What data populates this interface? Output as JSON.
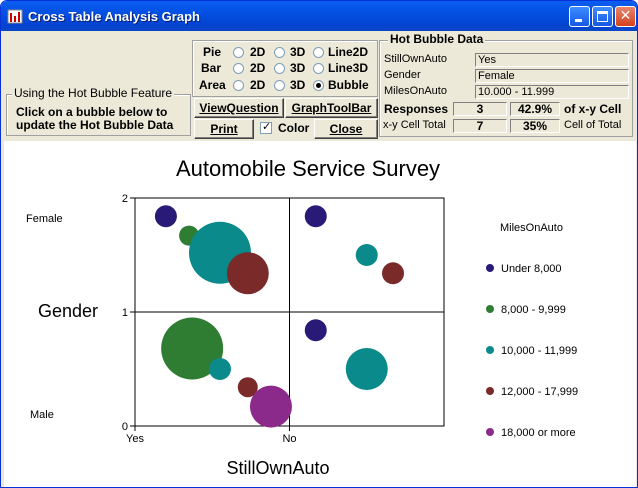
{
  "window": {
    "title": "Cross Table Analysis Graph"
  },
  "info": {
    "legend": "Using the Hot Bubble Feature",
    "text": "Click on a bubble below to update the Hot Bubble Data"
  },
  "options": {
    "rows": [
      {
        "label": "Pie",
        "choices": [
          "2D",
          "3D",
          "Line2D"
        ],
        "selected": null
      },
      {
        "label": "Bar",
        "choices": [
          "2D",
          "3D",
          "Line3D"
        ],
        "selected": null
      },
      {
        "label": "Area",
        "choices": [
          "2D",
          "3D",
          "Bubble"
        ],
        "selected": "Bubble"
      }
    ],
    "view_question": "ViewQuestion",
    "graph_toolbar": "GraphToolBar",
    "print": "Print",
    "color": "Color",
    "color_checked": true,
    "close": "Close"
  },
  "hot_bubble": {
    "legend": "Hot Bubble Data",
    "fields": [
      {
        "label": "StillOwnAuto",
        "value": "Yes"
      },
      {
        "label": "Gender",
        "value": "Female"
      },
      {
        "label": "MilesOnAuto",
        "value": "10.000 - 11.999"
      }
    ],
    "responses_label": "Responses",
    "responses": "3",
    "pct_xy": "42.9%",
    "pct_xy_label": "of x-y Cell",
    "xy_total_label": "x-y Cell Total",
    "xy_total": "7",
    "pct_cell": "35%",
    "pct_cell_label": "Cell of Total"
  },
  "chart_data": {
    "type": "bubble",
    "title": "Automobile Service Survey",
    "xlabel": "StillOwnAuto",
    "ylabel": "Gender",
    "x_ticks": [
      "Yes",
      "No"
    ],
    "y_ticks": [
      "0",
      "1",
      "2"
    ],
    "y_category_labels": {
      "top": "Female",
      "bottom": "Male"
    },
    "xlim": [
      0,
      2
    ],
    "ylim": [
      0,
      2
    ],
    "legend_title": "MilesOnAuto",
    "legend_position": "right",
    "series": [
      {
        "name": "Under 8,000",
        "color": "#2a1a78",
        "points": [
          {
            "x": 0.2,
            "y": 1.84,
            "r": 11
          },
          {
            "x": 1.17,
            "y": 1.84,
            "r": 11
          },
          {
            "x": 1.17,
            "y": 0.84,
            "r": 11
          }
        ]
      },
      {
        "name": "8,000 - 9,999",
        "color": "#2e7d32",
        "points": [
          {
            "x": 0.35,
            "y": 1.67,
            "r": 10
          },
          {
            "x": 0.37,
            "y": 0.68,
            "r": 31
          }
        ]
      },
      {
        "name": "10,000 - 11,999",
        "color": "#0a8a8a",
        "points": [
          {
            "x": 0.55,
            "y": 1.52,
            "r": 31
          },
          {
            "x": 0.55,
            "y": 0.5,
            "r": 11
          },
          {
            "x": 1.5,
            "y": 1.5,
            "r": 11
          },
          {
            "x": 1.5,
            "y": 0.5,
            "r": 21
          }
        ]
      },
      {
        "name": "12,000 - 17,999",
        "color": "#7b2a2a",
        "points": [
          {
            "x": 0.73,
            "y": 1.34,
            "r": 21
          },
          {
            "x": 1.67,
            "y": 1.34,
            "r": 11
          },
          {
            "x": 0.73,
            "y": 0.34,
            "r": 10
          }
        ]
      },
      {
        "name": "18,000 or more",
        "color": "#8b2a8b",
        "points": [
          {
            "x": 0.88,
            "y": 0.17,
            "r": 21
          }
        ]
      }
    ]
  }
}
